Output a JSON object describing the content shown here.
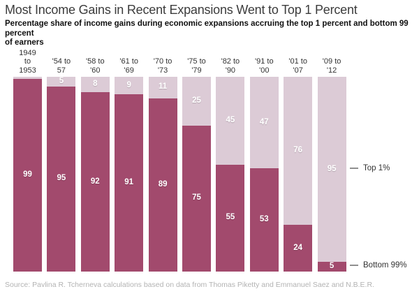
{
  "header": {
    "title": "Most Income Gains in Recent Expansions Went to Top 1 Percent",
    "subtitle": "Percentage share of income gains during economic expansions accruing the top 1 percent and bottom 99 percent\nof earners"
  },
  "chart_data": {
    "type": "bar",
    "stacked": true,
    "ylim": [
      0,
      100
    ],
    "grid": false,
    "legend_position": "right-annotations",
    "categories": [
      "1949\nto\n1953",
      "'54 to\n57",
      "'58 to\n'60",
      "'61 to\n'69",
      "'70 to\n'73",
      "'75 to\n'79",
      "'82 to\n'90",
      "'91 to\n'00",
      "'01 to\n'07",
      "'09 to\n'12"
    ],
    "series": [
      {
        "name": "Bottom 99%",
        "color": "#a24a6d",
        "values": [
          99,
          95,
          92,
          91,
          89,
          75,
          55,
          53,
          24,
          5
        ]
      },
      {
        "name": "Top 1%",
        "color": "#dccbd6",
        "values": [
          1,
          5,
          8,
          9,
          11,
          25,
          45,
          47,
          76,
          95
        ]
      }
    ],
    "value_label_color": "#ffffff",
    "label_min_value": 5,
    "annotations": [
      {
        "target_series": "Top 1%",
        "label": "Top 1%"
      },
      {
        "target_series": "Bottom 99%",
        "label": "Bottom 99%"
      }
    ]
  },
  "source": "Source: Pavlina R. Tcherneva calculations based on data from Thomas Piketty and Emmanuel Saez and N.B.E.R."
}
